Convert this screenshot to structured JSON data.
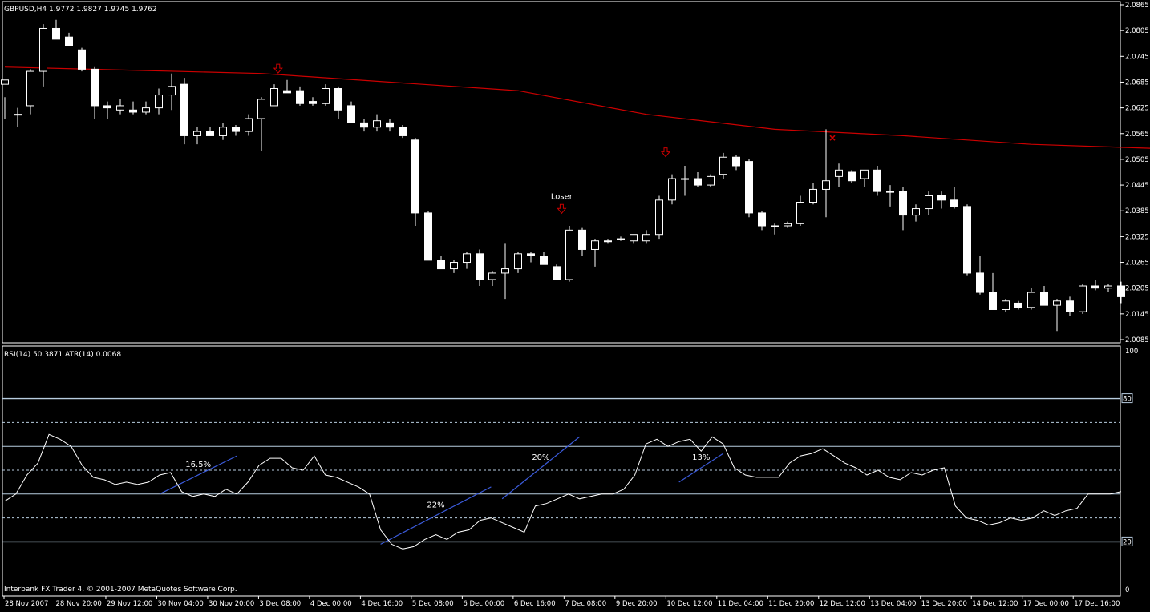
{
  "window": {
    "header": "GBPUSD,H4  1.9772 1.9827 1.9745 1.9762",
    "rsi_header": "RSI(14) 50.3871  ATR(14) 0.0068",
    "footer": "Interbank FX Trader 4, © 2001-2007 MetaQuotes Software Corp."
  },
  "colors": {
    "background": "#000000",
    "candle": "#ffffff",
    "moving_average": "#cc0000",
    "marker": "#cc0000",
    "rsi_line": "#ffffff",
    "trendline": "#3b5bdb",
    "level_line": "#b8cde0",
    "panel_border": "#ffffff"
  },
  "icons": {
    "arrow": "down-arrow-icon",
    "exit": "cross-icon"
  },
  "chart_data": [
    {
      "type": "candlestick",
      "symbol": "GBPUSD",
      "timeframe": "H4",
      "ylim": [
        2.0085,
        2.0865
      ],
      "y_ticks": [
        "2.0865",
        "2.0805",
        "2.0745",
        "2.0685",
        "2.0625",
        "2.0565",
        "2.0505",
        "2.0445",
        "2.0385",
        "2.0325",
        "2.0265",
        "2.0205",
        "2.0145",
        "2.0085"
      ],
      "x_ticks": [
        "28 Nov 2007",
        "28 Nov 20:00",
        "29 Nov 12:00",
        "30 Nov 04:00",
        "30 Nov 20:00",
        "3 Dec 08:00",
        "4 Dec 00:00",
        "4 Dec 16:00",
        "5 Dec 08:00",
        "6 Dec 00:00",
        "6 Dec 16:00",
        "7 Dec 08:00",
        "9 Dec 20:00",
        "10 Dec 12:00",
        "11 Dec 04:00",
        "11 Dec 20:00",
        "12 Dec 12:00",
        "13 Dec 04:00",
        "13 Dec 20:00",
        "14 Dec 12:00",
        "17 Dec 00:00",
        "17 Dec 16:00"
      ],
      "candles": [
        [
          2.068,
          2.06,
          2.065,
          2.069
        ],
        [
          2.061,
          2.058,
          2.0625,
          2.061
        ],
        [
          2.063,
          2.061,
          2.0715,
          2.071
        ],
        [
          2.071,
          2.0675,
          2.082,
          2.081
        ],
        [
          2.081,
          2.079,
          2.083,
          2.0785
        ],
        [
          2.079,
          2.077,
          2.08,
          2.077
        ],
        [
          2.076,
          2.071,
          2.0765,
          2.0715
        ],
        [
          2.0715,
          2.06,
          2.072,
          2.063
        ],
        [
          2.063,
          2.06,
          2.064,
          2.0625
        ],
        [
          2.062,
          2.061,
          2.0645,
          2.063
        ],
        [
          2.062,
          2.061,
          2.064,
          2.0615
        ],
        [
          2.0615,
          2.061,
          2.064,
          2.0625
        ],
        [
          2.0625,
          2.061,
          2.067,
          2.0655
        ],
        [
          2.0655,
          2.062,
          2.0705,
          2.0675
        ],
        [
          2.068,
          2.054,
          2.0695,
          2.056
        ],
        [
          2.056,
          2.054,
          2.058,
          2.057
        ],
        [
          2.057,
          2.056,
          2.058,
          2.056
        ],
        [
          2.056,
          2.055,
          2.059,
          2.058
        ],
        [
          2.058,
          2.056,
          2.0585,
          2.057
        ],
        [
          2.057,
          2.056,
          2.061,
          2.06
        ],
        [
          2.06,
          2.0525,
          2.065,
          2.0645
        ],
        [
          2.063,
          2.063,
          2.068,
          2.067
        ],
        [
          2.0665,
          2.066,
          2.069,
          2.066
        ],
        [
          2.0665,
          2.063,
          2.0675,
          2.0635
        ],
        [
          2.064,
          2.063,
          2.065,
          2.0635
        ],
        [
          2.0635,
          2.063,
          2.068,
          2.067
        ],
        [
          2.067,
          2.06,
          2.0675,
          2.062
        ],
        [
          2.063,
          2.059,
          2.064,
          2.059
        ],
        [
          2.059,
          2.057,
          2.06,
          2.058
        ],
        [
          2.058,
          2.057,
          2.061,
          2.0595
        ],
        [
          2.059,
          2.057,
          2.06,
          2.058
        ],
        [
          2.058,
          2.0555,
          2.0585,
          2.056
        ],
        [
          2.055,
          2.035,
          2.0555,
          2.038
        ],
        [
          2.038,
          2.027,
          2.0385,
          2.027
        ],
        [
          2.027,
          2.025,
          2.028,
          2.025
        ],
        [
          2.025,
          2.024,
          2.027,
          2.0265
        ],
        [
          2.0265,
          2.025,
          2.029,
          2.0285
        ],
        [
          2.0285,
          2.021,
          2.0295,
          2.0225
        ],
        [
          2.0225,
          2.021,
          2.0245,
          2.024
        ],
        [
          2.024,
          2.018,
          2.031,
          2.025
        ],
        [
          2.025,
          2.024,
          2.029,
          2.0285
        ],
        [
          2.0285,
          2.0265,
          2.029,
          2.028
        ],
        [
          2.028,
          2.026,
          2.029,
          2.026
        ],
        [
          2.0255,
          2.0225,
          2.026,
          2.0225
        ],
        [
          2.0225,
          2.022,
          2.035,
          2.034
        ],
        [
          2.034,
          2.028,
          2.0345,
          2.0295
        ],
        [
          2.0295,
          2.0255,
          2.032,
          2.0315
        ],
        [
          2.0315,
          2.031,
          2.032,
          2.0315
        ],
        [
          2.032,
          2.0315,
          2.0325,
          2.032
        ],
        [
          2.0315,
          2.031,
          2.033,
          2.033
        ],
        [
          2.0315,
          2.031,
          2.034,
          2.033
        ],
        [
          2.033,
          2.032,
          2.042,
          2.041
        ],
        [
          2.041,
          2.04,
          2.047,
          2.046
        ],
        [
          2.046,
          2.042,
          2.049,
          2.046
        ],
        [
          2.046,
          2.044,
          2.0475,
          2.0445
        ],
        [
          2.0445,
          2.044,
          2.047,
          2.0465
        ],
        [
          2.047,
          2.046,
          2.052,
          2.051
        ],
        [
          2.051,
          2.048,
          2.0515,
          2.049
        ],
        [
          2.05,
          2.037,
          2.0505,
          2.038
        ],
        [
          2.038,
          2.034,
          2.0385,
          2.035
        ],
        [
          2.035,
          2.033,
          2.0355,
          2.035
        ],
        [
          2.035,
          2.0345,
          2.036,
          2.0355
        ],
        [
          2.0355,
          2.035,
          2.042,
          2.0405
        ],
        [
          2.0405,
          2.04,
          2.045,
          2.0435
        ],
        [
          2.0435,
          2.037,
          2.0575,
          2.0455
        ],
        [
          2.0465,
          2.044,
          2.0495,
          2.048
        ],
        [
          2.0475,
          2.045,
          2.048,
          2.0455
        ],
        [
          2.046,
          2.044,
          2.048,
          2.048
        ],
        [
          2.048,
          2.042,
          2.049,
          2.043
        ],
        [
          2.043,
          2.0395,
          2.0445,
          2.043
        ],
        [
          2.043,
          2.034,
          2.044,
          2.0375
        ],
        [
          2.0375,
          2.036,
          2.04,
          2.039
        ],
        [
          2.039,
          2.0375,
          2.043,
          2.042
        ],
        [
          2.042,
          2.039,
          2.043,
          2.041
        ],
        [
          2.041,
          2.039,
          2.044,
          2.0395
        ],
        [
          2.0395,
          2.0235,
          2.04,
          2.024
        ],
        [
          2.024,
          2.019,
          2.028,
          2.0195
        ],
        [
          2.0195,
          2.0155,
          2.024,
          2.0155
        ],
        [
          2.0155,
          2.015,
          2.018,
          2.0175
        ],
        [
          2.017,
          2.0155,
          2.0175,
          2.016
        ],
        [
          2.016,
          2.0155,
          2.0205,
          2.0195
        ],
        [
          2.0195,
          2.0165,
          2.021,
          2.0165
        ],
        [
          2.0165,
          2.0105,
          2.018,
          2.0175
        ],
        [
          2.0175,
          2.014,
          2.0185,
          2.015
        ],
        [
          2.015,
          2.0145,
          2.0215,
          2.021
        ],
        [
          2.021,
          2.02,
          2.0225,
          2.0205
        ],
        [
          2.0205,
          2.0195,
          2.0215,
          2.021
        ],
        [
          2.021,
          2.017,
          2.022,
          2.0185
        ]
      ],
      "moving_average": [
        [
          0,
          2.072
        ],
        [
          20,
          2.0705
        ],
        [
          40,
          2.0665
        ],
        [
          50,
          2.061
        ],
        [
          60,
          2.0575
        ],
        [
          70,
          2.056
        ],
        [
          80,
          2.054
        ],
        [
          90,
          2.053
        ],
        [
          100,
          2.052
        ],
        [
          110,
          2.0515
        ],
        [
          117,
          2.049
        ]
      ],
      "markers": [
        {
          "type": "arrow",
          "index": 21.3,
          "price": 2.071,
          "label": ""
        },
        {
          "type": "arrow",
          "index": 43.4,
          "price": 2.0383,
          "label": "Loser"
        },
        {
          "type": "arrow",
          "index": 51.5,
          "price": 2.0515,
          "label": ""
        },
        {
          "type": "cross",
          "index": 64.5,
          "price": 2.0555,
          "label": ""
        }
      ]
    },
    {
      "type": "line",
      "title": "RSI(14)",
      "ylim": [
        0,
        100
      ],
      "y_ticks": [
        "100",
        "80",
        "20",
        "0"
      ],
      "levels": [
        80,
        70,
        60,
        50,
        40,
        30,
        20
      ],
      "solid_levels": [
        80,
        60,
        40,
        20
      ],
      "values": [
        37,
        40,
        48,
        53,
        65,
        63,
        60,
        52,
        47,
        46,
        44,
        45,
        44,
        45,
        48,
        49,
        41,
        39,
        40,
        39,
        42,
        40,
        45,
        52,
        55,
        55,
        51,
        50,
        56,
        48,
        47,
        45,
        43,
        40,
        25,
        19,
        17,
        18,
        21,
        23,
        21,
        24,
        25,
        29,
        30,
        28,
        26,
        24,
        35,
        36,
        38,
        40,
        38,
        39,
        40,
        40,
        42,
        48,
        61,
        63,
        60,
        62,
        63,
        58,
        64,
        61,
        51,
        48,
        47,
        47,
        47,
        53,
        56,
        57,
        59,
        56,
        53,
        51,
        48,
        50,
        47,
        46,
        49,
        48,
        50,
        51,
        35,
        30,
        29,
        27,
        28,
        30,
        29,
        30,
        33,
        31,
        33,
        34,
        40,
        40,
        40,
        41
      ],
      "trendlines": [
        {
          "x0": 14,
          "y0": 40,
          "x1": 21,
          "y1": 56,
          "label": "16.5%"
        },
        {
          "x0": 34,
          "y0": 19,
          "x1": 44,
          "y1": 43,
          "label": "22%"
        },
        {
          "x0": 45,
          "y0": 38,
          "x1": 52,
          "y1": 64,
          "label": "20%"
        },
        {
          "x0": 61,
          "y0": 45,
          "x1": 65,
          "y1": 57,
          "label": "13%"
        }
      ]
    }
  ]
}
